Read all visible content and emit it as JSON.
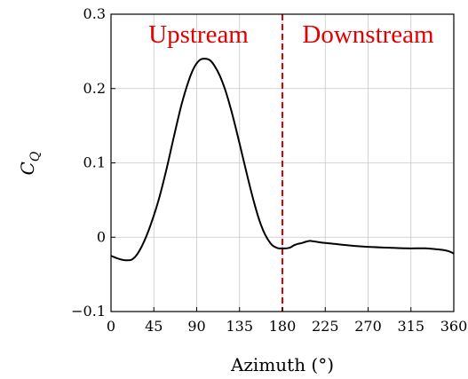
{
  "chart_data": {
    "type": "line",
    "xlabel": "Azimuth (°)",
    "ylabel": "C",
    "ylabel_subscript": "Q",
    "xlim": [
      0,
      360
    ],
    "ylim": [
      -0.1,
      0.3
    ],
    "x_ticks": [
      0,
      45,
      90,
      135,
      180,
      225,
      270,
      315,
      360
    ],
    "y_ticks": [
      -0.1,
      0,
      0.1,
      0.2,
      0.3
    ],
    "x_tick_labels": [
      "0",
      "45",
      "90",
      "135",
      "180",
      "225",
      "270",
      "315",
      "360"
    ],
    "y_tick_labels": [
      "−0.1",
      "0",
      "0.1",
      "0.2",
      "0.3"
    ],
    "grid": true,
    "series": [
      {
        "color": "#000000",
        "x": [
          0,
          8,
          15,
          22,
          28,
          35,
          42,
          50,
          58,
          66,
          74,
          82,
          88,
          94,
          100,
          104,
          108,
          114,
          120,
          126,
          132,
          138,
          144,
          150,
          156,
          162,
          168,
          172,
          176,
          180,
          184,
          188,
          192,
          196,
          200,
          205,
          210,
          220,
          235,
          250,
          270,
          290,
          310,
          330,
          340,
          348,
          355,
          360
        ],
        "y": [
          -0.025,
          -0.029,
          -0.031,
          -0.03,
          -0.022,
          -0.005,
          0.018,
          0.05,
          0.09,
          0.135,
          0.178,
          0.212,
          0.23,
          0.239,
          0.24,
          0.238,
          0.232,
          0.218,
          0.198,
          0.172,
          0.142,
          0.11,
          0.078,
          0.048,
          0.022,
          0.003,
          -0.009,
          -0.013,
          -0.015,
          -0.015,
          -0.015,
          -0.014,
          -0.011,
          -0.009,
          -0.008,
          -0.006,
          -0.005,
          -0.007,
          -0.009,
          -0.011,
          -0.013,
          -0.014,
          -0.015,
          -0.015,
          -0.016,
          -0.017,
          -0.019,
          -0.022
        ]
      }
    ],
    "divider": {
      "x": 180,
      "color": "#dd0000",
      "style": "dashed"
    },
    "annotations": [
      {
        "text": "Upstream",
        "color": "#e00000",
        "region": "left"
      },
      {
        "text": "Downstream",
        "color": "#e00000",
        "region": "right"
      }
    ]
  }
}
